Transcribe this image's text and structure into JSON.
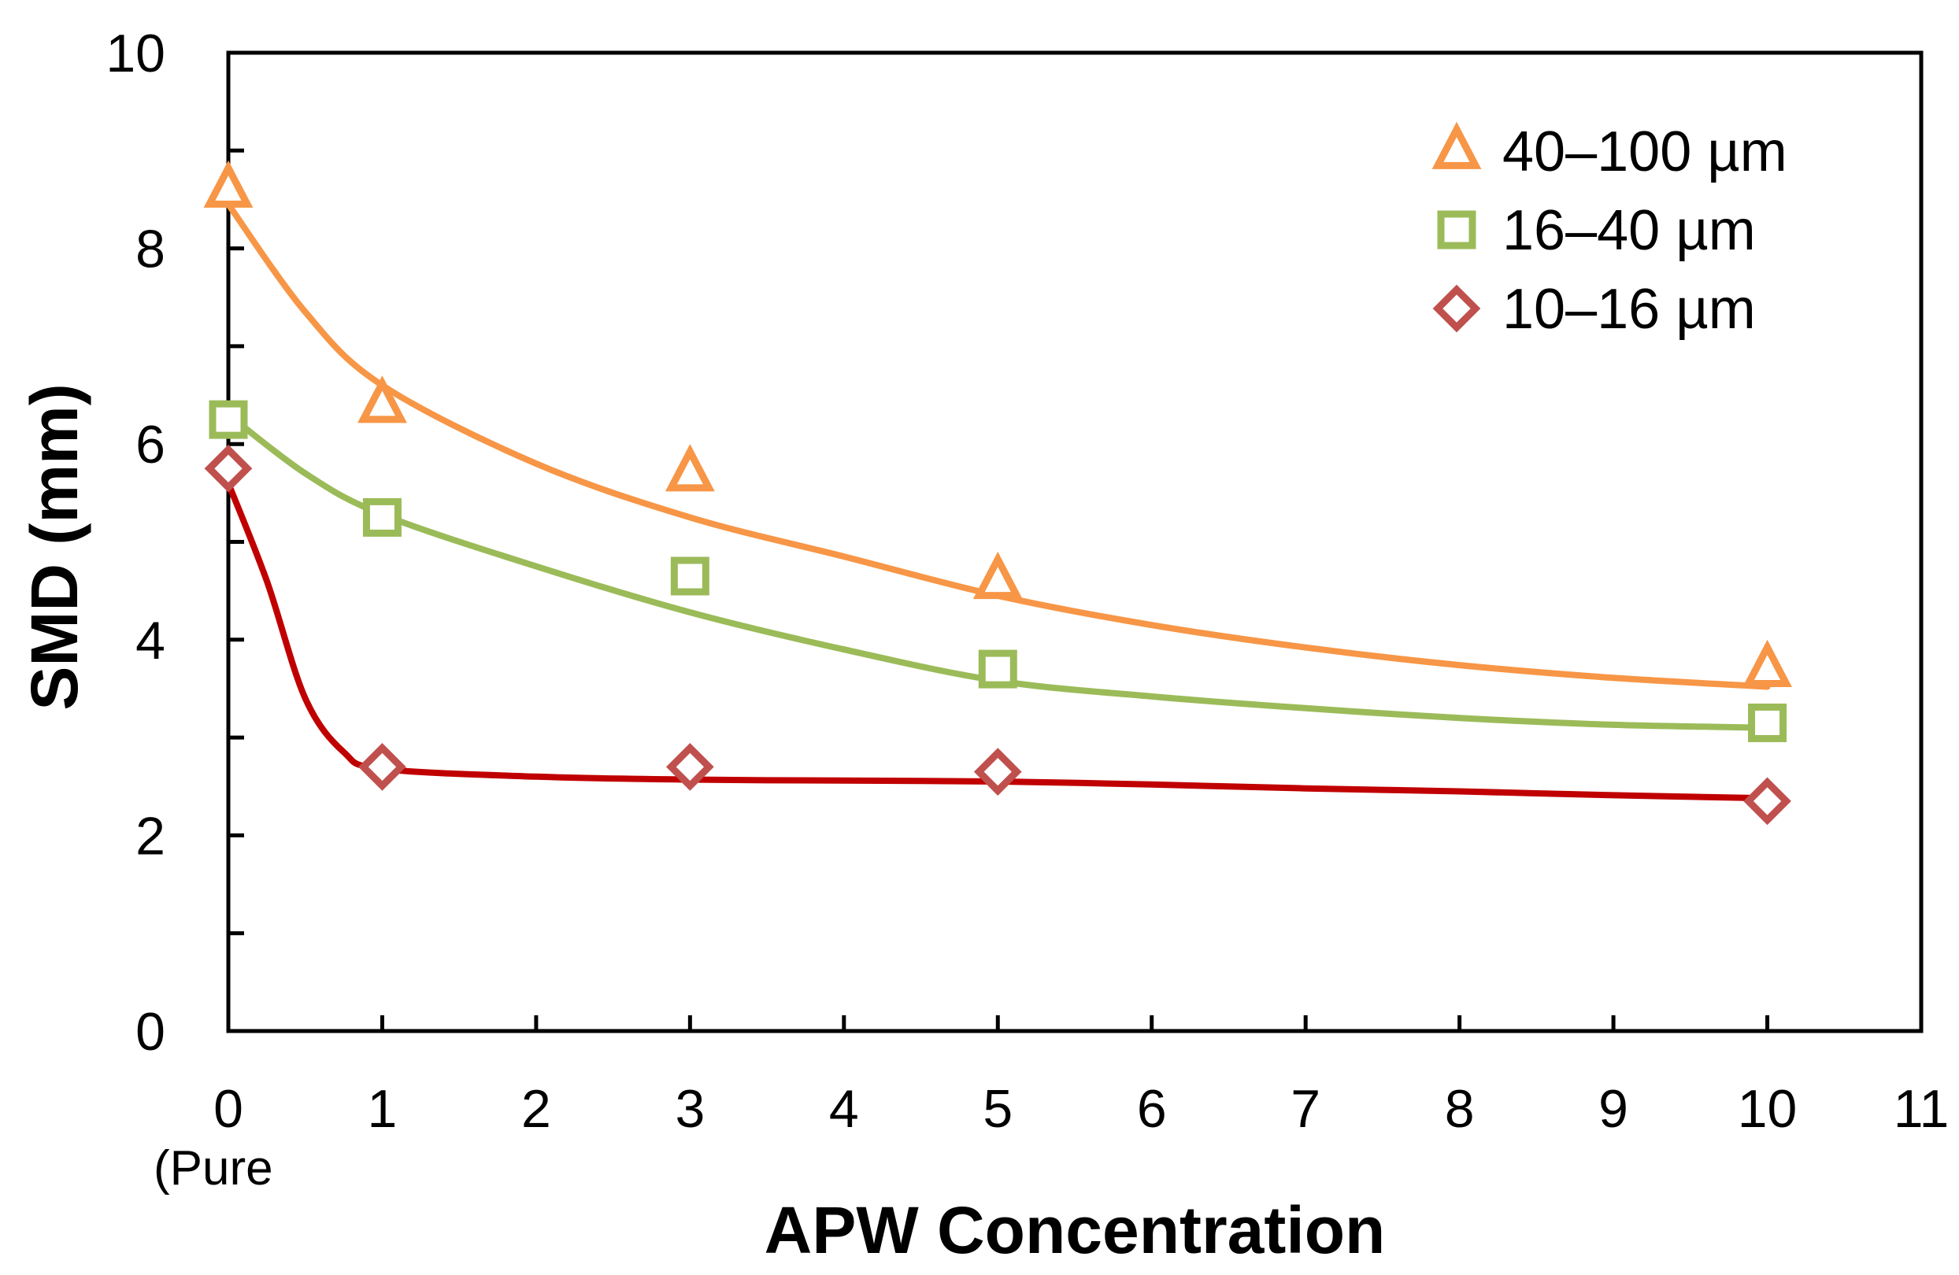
{
  "chart_data": {
    "type": "scatter",
    "title": "",
    "xlabel": "APW Concentration",
    "ylabel": "SMD (mm)",
    "xlim": [
      0,
      11
    ],
    "ylim": [
      0,
      10
    ],
    "x_ticks": [
      0,
      1,
      2,
      3,
      4,
      5,
      6,
      7,
      8,
      9,
      10,
      11
    ],
    "y_ticks": [
      0,
      2,
      4,
      6,
      8,
      10
    ],
    "x_tick_labels": [
      "0",
      "1",
      "2",
      "3",
      "4",
      "5",
      "6",
      "7",
      "8",
      "9",
      "10",
      "11"
    ],
    "y_tick_labels": [
      "0",
      "2",
      "4",
      "6",
      "8",
      "10"
    ],
    "x_zero_sublabel": "(Pure",
    "grid": false,
    "legend_position": "top-right",
    "series": [
      {
        "name": "40–100 µm",
        "marker": "triangle",
        "color": "#F79646",
        "x": [
          0,
          1,
          3,
          5,
          10
        ],
        "y": [
          8.6,
          6.4,
          5.7,
          4.6,
          3.7
        ],
        "fit": [
          [
            0,
            8.45
          ],
          [
            0.5,
            7.35
          ],
          [
            1,
            6.6
          ],
          [
            2,
            5.8
          ],
          [
            3,
            5.25
          ],
          [
            4,
            4.85
          ],
          [
            5,
            4.45
          ],
          [
            6,
            4.15
          ],
          [
            7,
            3.92
          ],
          [
            8,
            3.74
          ],
          [
            9,
            3.61
          ],
          [
            10,
            3.52
          ]
        ]
      },
      {
        "name": "16–40 µm",
        "marker": "square",
        "color": "#9BBB59",
        "x": [
          0,
          1,
          3,
          5,
          10
        ],
        "y": [
          6.25,
          5.25,
          4.65,
          3.7,
          3.15
        ],
        "fit": [
          [
            0,
            6.3
          ],
          [
            0.5,
            5.7
          ],
          [
            1,
            5.28
          ],
          [
            2,
            4.75
          ],
          [
            3,
            4.28
          ],
          [
            4,
            3.9
          ],
          [
            5,
            3.58
          ],
          [
            6,
            3.42
          ],
          [
            7,
            3.3
          ],
          [
            8,
            3.2
          ],
          [
            9,
            3.13
          ],
          [
            10,
            3.1
          ]
        ]
      },
      {
        "name": "10–16 µm",
        "marker": "diamond",
        "color": "#C0504D",
        "line_color": "#C00000",
        "x": [
          0,
          1,
          3,
          5,
          10
        ],
        "y": [
          5.75,
          2.7,
          2.7,
          2.65,
          2.35
        ],
        "fit": [
          [
            0,
            5.6
          ],
          [
            0.25,
            4.6
          ],
          [
            0.5,
            3.4
          ],
          [
            0.75,
            2.85
          ],
          [
            1,
            2.68
          ],
          [
            2,
            2.6
          ],
          [
            3,
            2.57
          ],
          [
            4,
            2.56
          ],
          [
            5,
            2.55
          ],
          [
            6,
            2.52
          ],
          [
            7,
            2.48
          ],
          [
            8,
            2.45
          ],
          [
            9,
            2.41
          ],
          [
            10,
            2.38
          ]
        ]
      }
    ]
  }
}
